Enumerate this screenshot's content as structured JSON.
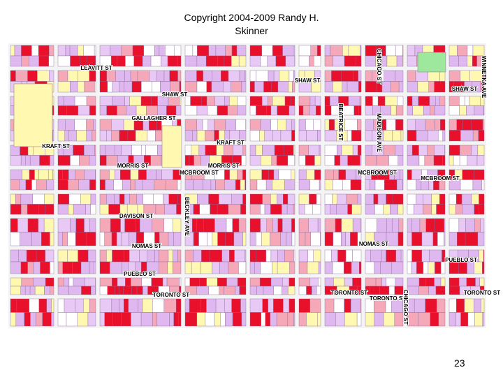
{
  "header": {
    "copyright": "Copyright 2004-2009 Randy H. Skinner"
  },
  "map": {
    "streets": [
      "SHAW ST",
      "SHAW ST",
      "SHAW ST",
      "GALLAGHER ST",
      "KRAFT ST",
      "KRAFT ST",
      "MORRIS ST",
      "MORRIS ST",
      "MCBROOM ST",
      "MCBROOM ST",
      "MCBROOM ST",
      "DAVISON ST",
      "NOMAS ST",
      "NOMAS ST",
      "PUEBLO ST",
      "PUEBLO ST",
      "TORONTO ST",
      "TORONTO ST",
      "TORONTO ST",
      "TORONTO ST",
      "CHICAGO ST",
      "CHICAGO ST",
      "BEATRICE ST",
      "LEAVITT ST",
      "BECKLEY AVE",
      "MADISON AVE",
      "WINNETKA AVE"
    ]
  },
  "footer": {
    "page_number": "23"
  }
}
